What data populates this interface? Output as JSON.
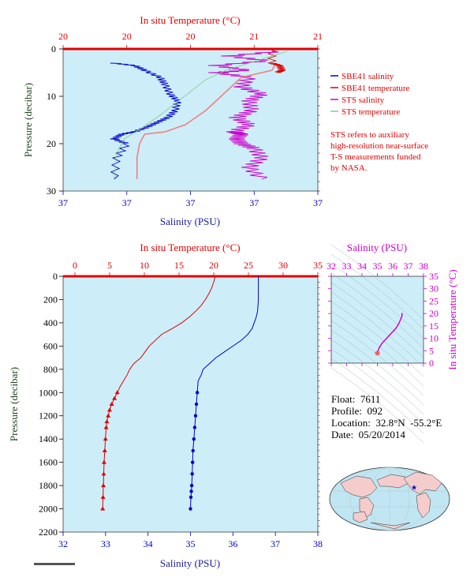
{
  "colors": {
    "plot_bg": "#cdeef8",
    "red": "#e00000",
    "blue": "#0000cc",
    "magenta": "#cc00cc",
    "green": "#88cc88",
    "salmon": "#f08080",
    "navy_label": "#1a1aa0",
    "dark_label": "#224422"
  },
  "chart_data": [
    {
      "id": "near_surface",
      "type": "line",
      "title": "In situ Temperature (°C)",
      "top_ticks": [
        "20",
        "20",
        "20",
        "21",
        "21"
      ],
      "xlabel": "Salinity (PSU)",
      "bottom_ticks": [
        "37",
        "37",
        "37",
        "37",
        "37"
      ],
      "ylabel": "Pressure (decibar)",
      "ylim": [
        30,
        0
      ],
      "y_ticks": [
        0,
        10,
        20,
        30
      ],
      "legend_position": "right",
      "legend": [
        {
          "label": "SBE41 salinity",
          "color": "#0000cc"
        },
        {
          "label": "SBE41 temperature",
          "color": "#e00000"
        },
        {
          "label": "STS salinity",
          "color": "#cc00cc"
        },
        {
          "label": "STS temperature",
          "color": "#88cc88"
        }
      ],
      "note": [
        "STS refers to auxiliary",
        "high-resolution near-surface",
        "T-S measurements funded",
        "by NASA."
      ],
      "series": [
        {
          "name": "SBE41 salinity",
          "color": "#0000cc",
          "x_frac": [
            0.2,
            0.28,
            0.32,
            0.38,
            0.4,
            0.42,
            0.45,
            0.44,
            0.41,
            0.37,
            0.33,
            0.28,
            0.23,
            0.2,
            0.25,
            0.21,
            0.2
          ],
          "pressure": [
            3.0,
            3.5,
            4.5,
            6.0,
            7.5,
            9.5,
            11.0,
            13.0,
            14.5,
            15.5,
            16.5,
            17.5,
            18.0,
            19.0,
            20.0,
            23.0,
            27.5
          ]
        },
        {
          "name": "SBE41 temperature",
          "color": "#e00000",
          "x_frac": [
            0.82,
            0.82,
            0.85,
            0.86,
            0.84
          ],
          "pressure": [
            0.0,
            3.0,
            3.5,
            4.5,
            5.0
          ]
        },
        {
          "name": "STS salinity",
          "color": "#cc00cc",
          "x_frac": [
            0.85,
            0.65,
            0.8,
            0.6,
            0.72,
            0.6,
            0.73,
            0.7,
            0.78,
            0.73,
            0.74,
            0.68,
            0.73,
            0.67,
            0.7,
            0.68,
            0.7,
            0.75,
            0.78,
            0.73,
            0.78
          ],
          "pressure": [
            0.5,
            1.5,
            2.5,
            3.5,
            4.5,
            5.0,
            6.0,
            8.0,
            9.5,
            11.0,
            13.0,
            14.5,
            16.0,
            17.5,
            18.0,
            19.0,
            20.0,
            21.0,
            23.0,
            25.0,
            27.5
          ]
        },
        {
          "name": "STS temperature",
          "color": "#88cc88",
          "x_frac": [
            0.88,
            0.76,
            0.64,
            0.56,
            0.5,
            0.44,
            0.38,
            0.3,
            0.24,
            0.21,
            0.2
          ],
          "pressure": [
            0.5,
            2.5,
            4.5,
            6.5,
            9.0,
            11.5,
            14.0,
            17.0,
            19.0,
            22.0,
            27.5
          ]
        },
        {
          "name": "",
          "color": "#f08080",
          "x_frac": [
            0.83,
            0.82,
            0.7,
            0.64,
            0.56,
            0.48,
            0.4,
            0.32,
            0.3,
            0.29,
            0.29
          ],
          "pressure": [
            3.5,
            4.5,
            6.0,
            9.0,
            13.0,
            16.0,
            17.5,
            18.0,
            20.0,
            23.0,
            27.5
          ]
        }
      ]
    },
    {
      "id": "full_profile",
      "type": "line",
      "title": "In situ Temperature (°C)",
      "top_ticks": [
        0,
        5,
        10,
        15,
        20,
        25,
        30,
        35
      ],
      "xlabel": "Salinity (PSU)",
      "bottom_ticks": [
        32,
        33,
        34,
        35,
        36,
        37,
        38
      ],
      "ylabel": "Pressure (decibar)",
      "ylim": [
        2200,
        0
      ],
      "y_ticks": [
        0,
        200,
        400,
        600,
        800,
        1000,
        1200,
        1400,
        1600,
        1800,
        2000,
        2200
      ],
      "series": [
        {
          "name": "Temperature",
          "color": "#e00000",
          "unit_axis": "temperature",
          "x": [
            20.2,
            20.0,
            19.7,
            19.3,
            18.8,
            18.2,
            17.4,
            16.5,
            15.4,
            14.0,
            12.5,
            10.7,
            9.5,
            8.5,
            7.9,
            7.5,
            7.0,
            6.5,
            6.1,
            5.7,
            5.3,
            5.0,
            4.8,
            4.6,
            4.5,
            4.4,
            4.3,
            4.2,
            4.15,
            4.1,
            4.05,
            4.0
          ],
          "pressure": [
            0,
            50,
            100,
            150,
            200,
            250,
            300,
            350,
            400,
            450,
            500,
            600,
            700,
            750,
            800,
            850,
            900,
            950,
            1000,
            1050,
            1100,
            1150,
            1200,
            1250,
            1300,
            1400,
            1500,
            1600,
            1700,
            1800,
            1900,
            2000
          ]
        },
        {
          "name": "Salinity",
          "color": "#0000cc",
          "unit_axis": "salinity",
          "x": [
            36.6,
            36.6,
            36.6,
            36.58,
            36.55,
            36.5,
            36.45,
            36.35,
            36.2,
            36.0,
            35.8,
            35.6,
            35.45,
            35.3,
            35.25,
            35.18,
            35.16,
            35.14,
            35.12,
            35.1,
            35.08,
            35.06,
            35.05,
            35.04,
            35.03,
            35.02,
            35.01,
            35.0
          ],
          "pressure": [
            0,
            100,
            200,
            300,
            350,
            400,
            450,
            500,
            550,
            600,
            650,
            700,
            750,
            800,
            850,
            900,
            1000,
            1100,
            1200,
            1300,
            1400,
            1500,
            1600,
            1700,
            1800,
            1850,
            1900,
            2000
          ]
        }
      ]
    },
    {
      "id": "ts_diagram",
      "type": "scatter",
      "title": "Salinity (PSU)",
      "top_ticks": [
        32,
        33,
        34,
        35,
        36,
        37,
        38
      ],
      "ylabel": "In situ Temperature (°C)",
      "right_ticks": [
        0,
        5,
        10,
        15,
        20,
        25,
        30,
        35
      ],
      "xlim": [
        32,
        38
      ],
      "ylim": [
        0,
        35
      ],
      "series": [
        {
          "name": "T-S",
          "color": "#cc00cc",
          "salinity": [
            35.0,
            35.1,
            35.3,
            35.6,
            35.9,
            36.2,
            36.4,
            36.5,
            36.6,
            36.6
          ],
          "temperature": [
            4.0,
            6.0,
            8.0,
            10.0,
            12.0,
            14.0,
            16.0,
            17.5,
            19.0,
            20.2
          ]
        }
      ]
    }
  ],
  "info": {
    "float": "Float:  7611",
    "profile": "Profile:  092",
    "location": "Location:  32.8°N  -55.2°E",
    "date": "Date:  05/20/2014"
  },
  "map": {
    "marker_icon": "star-icon",
    "marker_color": "#0000cc",
    "float_lat": 32.8,
    "float_lon": -55.2
  }
}
